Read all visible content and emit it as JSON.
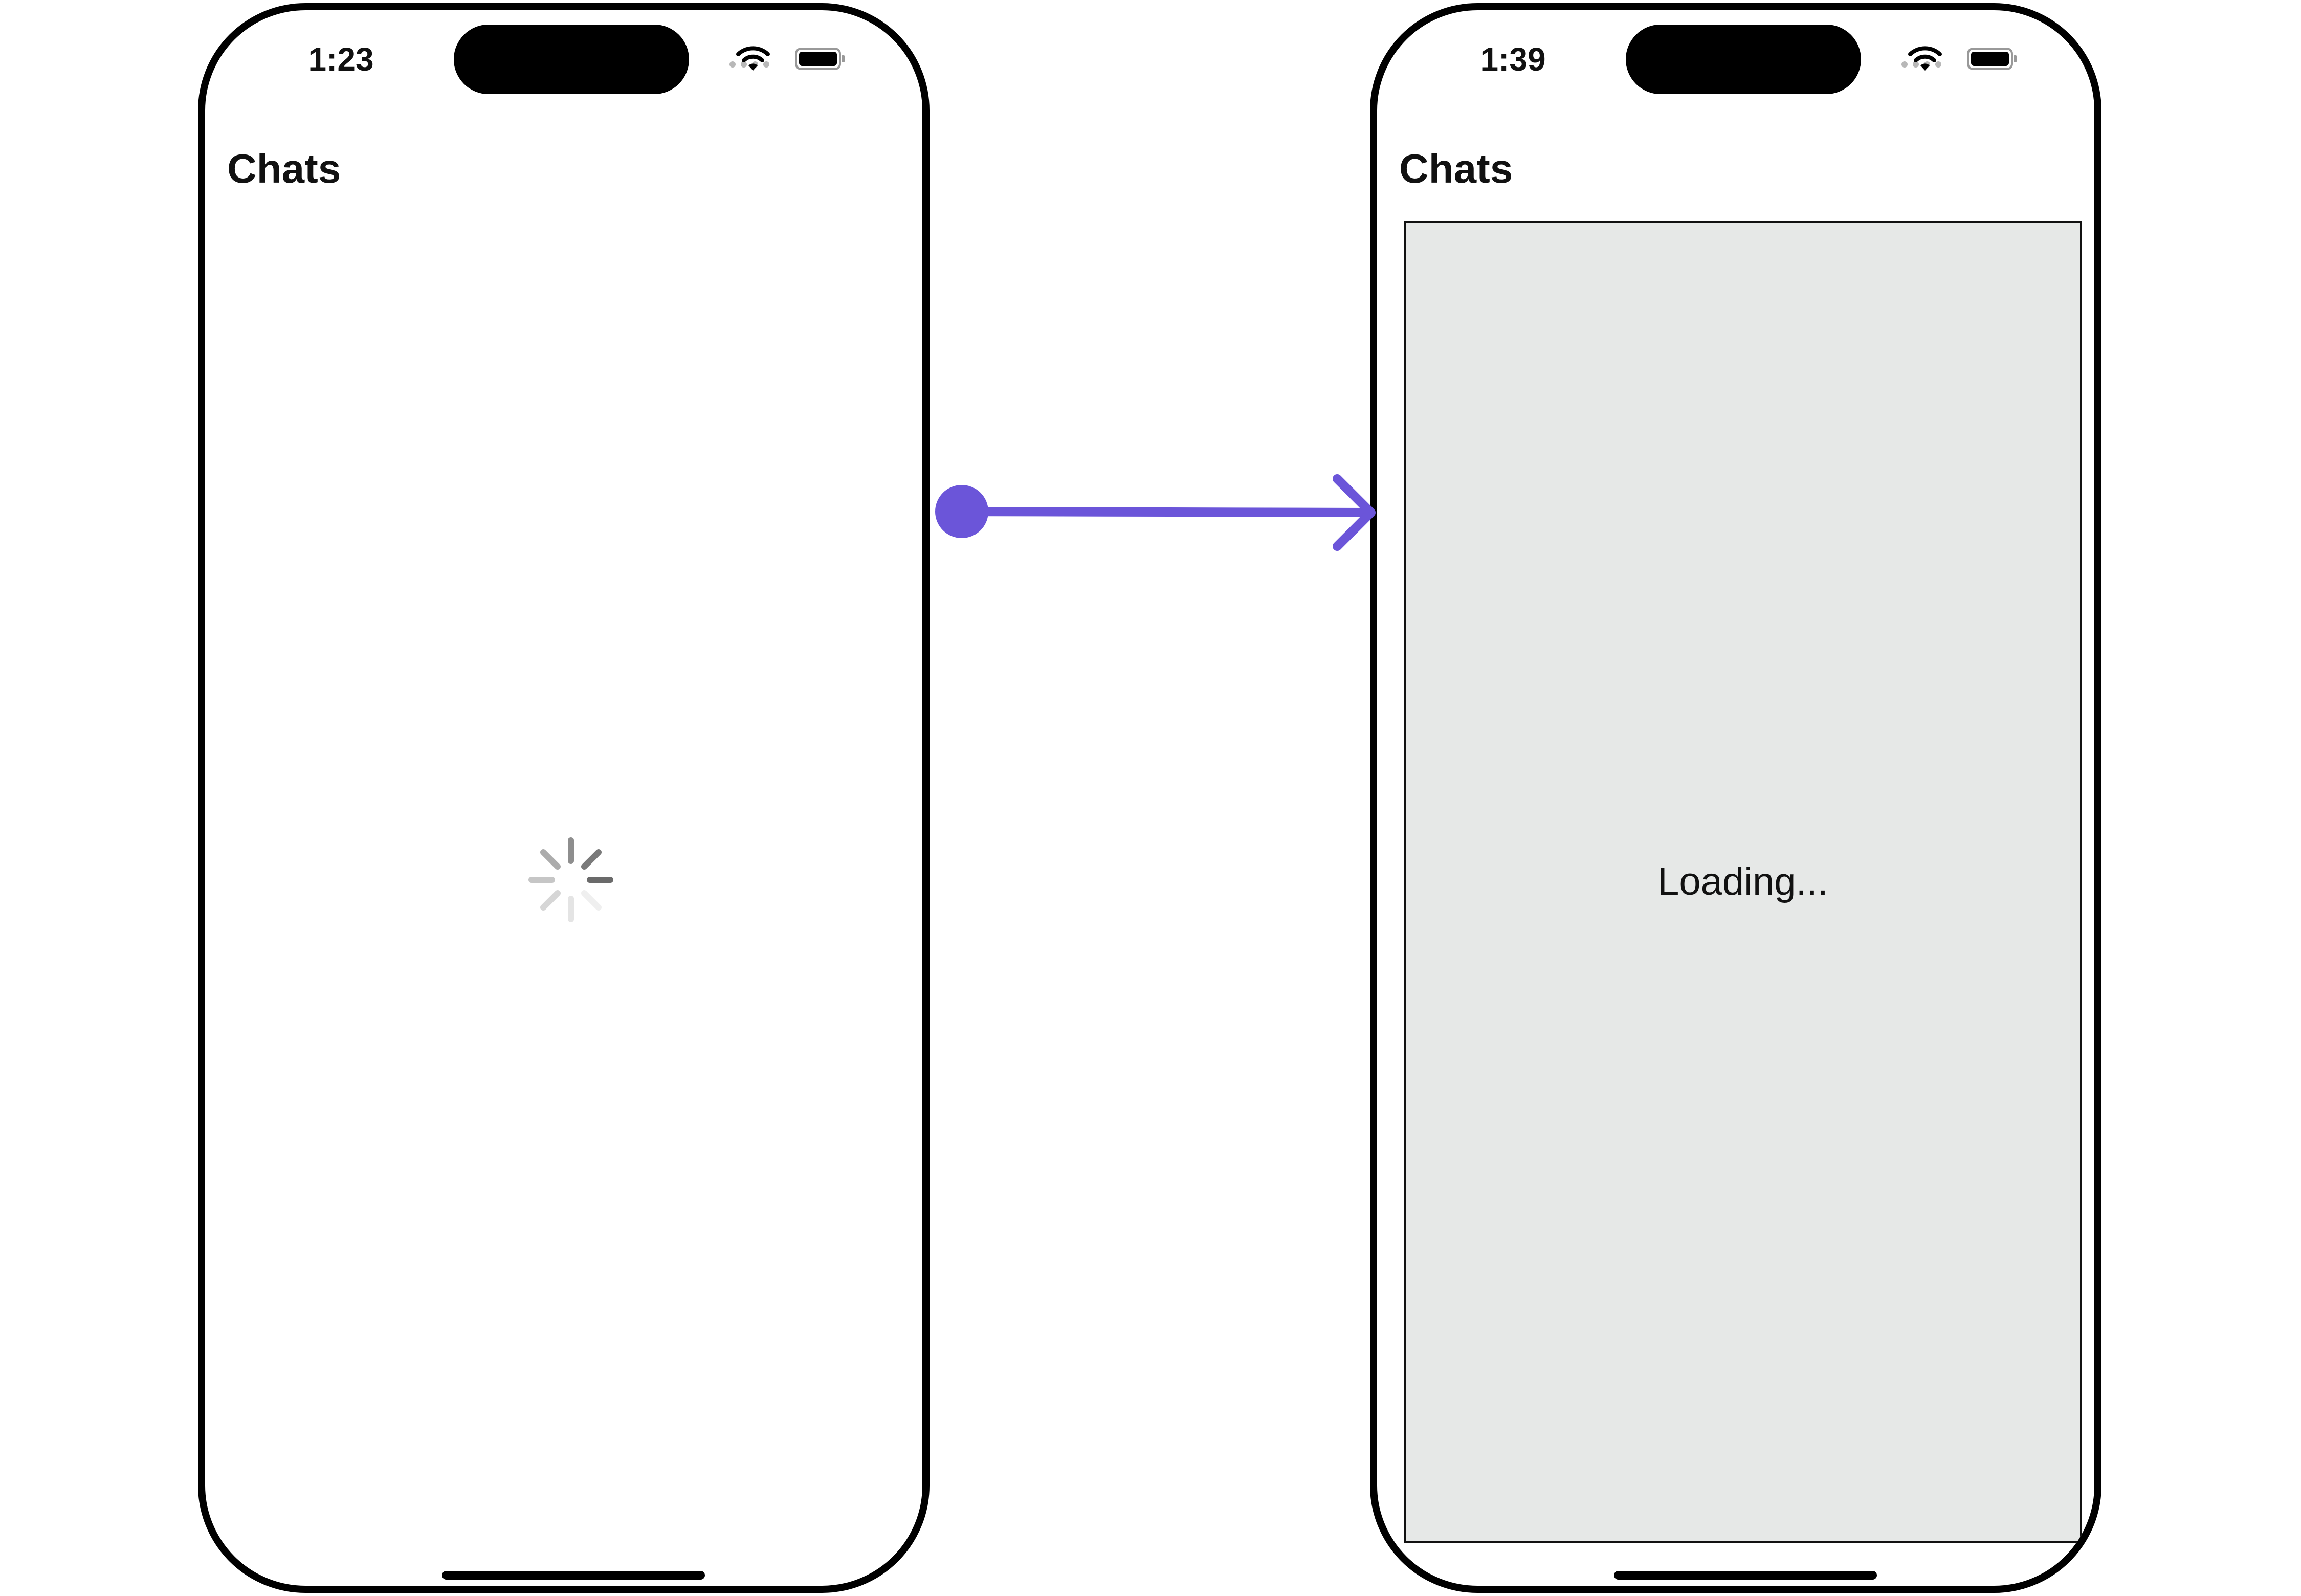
{
  "screens": [
    {
      "id": "before",
      "status_time": "1:23",
      "title": "Chats",
      "state": "spinner"
    },
    {
      "id": "after",
      "status_time": "1:39",
      "title": "Chats",
      "loading_text": "Loading..."
    }
  ],
  "colors": {
    "arrow": "#6b55d9",
    "placeholder_bg": "#e6e8e7",
    "frame": "#000000"
  },
  "icons": {
    "wifi": "wifi-icon",
    "battery": "battery-icon",
    "spinner": "activity-spinner-icon",
    "signal": "cellular-signal-icon"
  }
}
